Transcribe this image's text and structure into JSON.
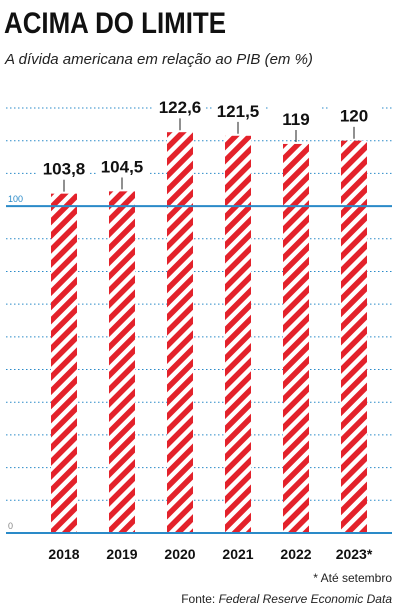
{
  "chart_data": {
    "type": "bar",
    "title": "ACIMA DO LIMITE",
    "subtitle": "A dívida americana em relação ao PIB (em %)",
    "categories": [
      "2018",
      "2019",
      "2020",
      "2021",
      "2022",
      "2023*"
    ],
    "values": [
      103.8,
      104.5,
      122.6,
      121.5,
      119,
      120
    ],
    "value_labels": [
      "103,8",
      "104,5",
      "122,6",
      "121,5",
      "119",
      "120"
    ],
    "color": "#e3222b",
    "ylim": [
      0,
      130
    ],
    "yticks": [
      0,
      100
    ],
    "minor_yticks": [
      10,
      20,
      30,
      40,
      50,
      60,
      70,
      80,
      90,
      110,
      120,
      130
    ],
    "grid": true,
    "footnote": "* Até setembro",
    "source_label": "Fonte:",
    "source": "Federal Reserve Economic Data"
  }
}
